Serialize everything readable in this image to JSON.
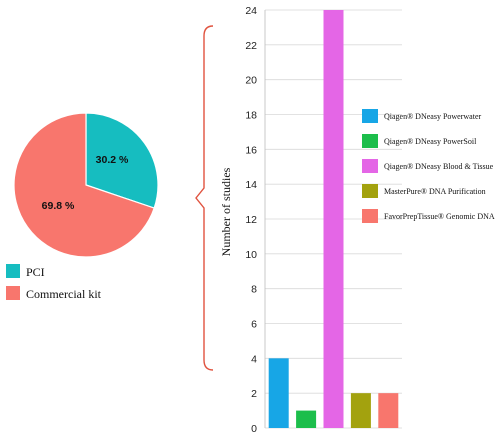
{
  "chart_data": [
    {
      "type": "pie",
      "categories": [
        "PCI",
        "Commercial kit"
      ],
      "values": [
        30.2,
        69.8
      ],
      "value_labels": [
        "30.2 %",
        "69.8 %"
      ],
      "colors": [
        "#16BDC0",
        "#F8766D"
      ],
      "legend_placement": "bottom-left"
    },
    {
      "type": "bar",
      "categories": [
        "Qiagen® DNeasy Powerwater",
        "Qiagen® DNeasy PowerSoil",
        "Qiagen® DNeasy Blood & Tissue",
        "MasterPure® DNA Purification",
        "FavorPrepTissue® Genomic DNA"
      ],
      "values": [
        4,
        1,
        24,
        2,
        2
      ],
      "colors": [
        "#17A6E6",
        "#1CBE4B",
        "#E466E6",
        "#A3A20E",
        "#F8766D"
      ],
      "ylabel": "Number of studies",
      "ylim": [
        0,
        24
      ],
      "yticks": [
        0,
        2,
        4,
        6,
        8,
        10,
        12,
        14,
        16,
        18,
        20,
        22,
        24
      ],
      "grid": true,
      "legend_placement": "right"
    }
  ]
}
